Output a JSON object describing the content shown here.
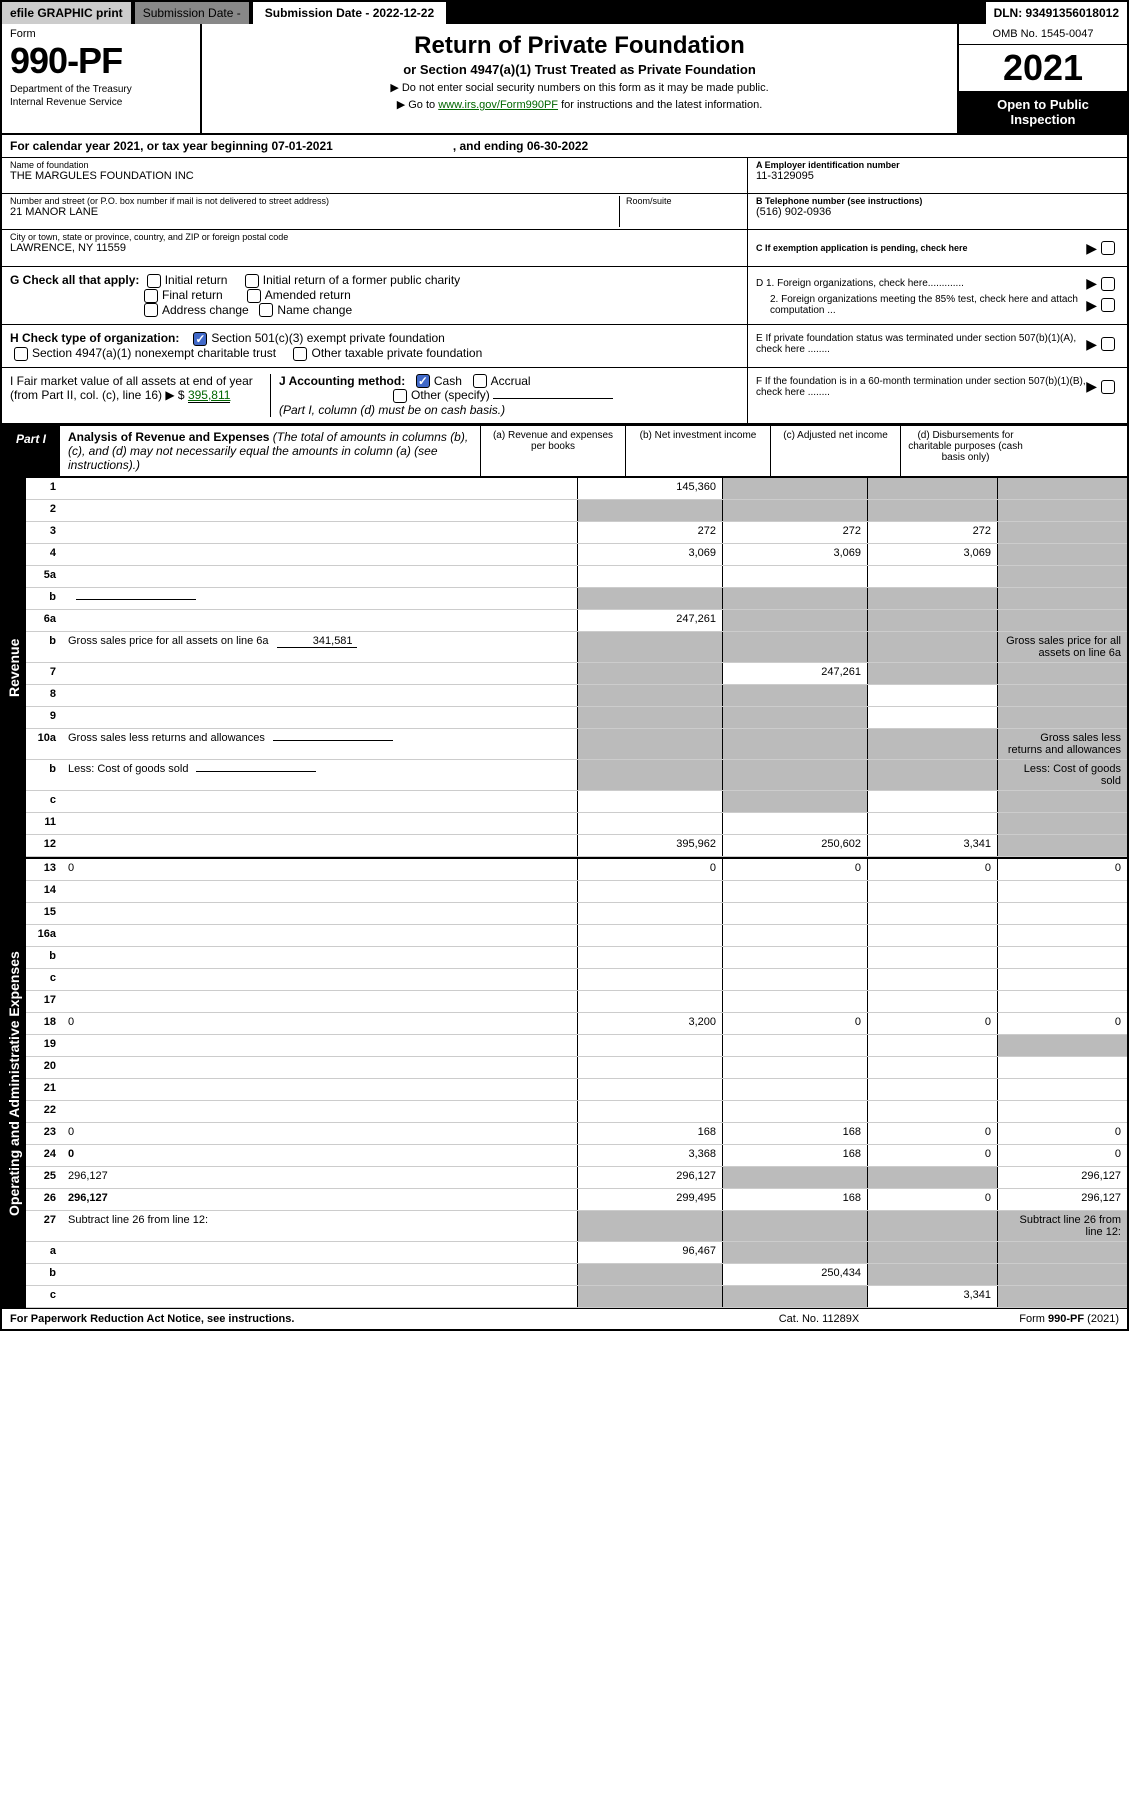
{
  "topbar": {
    "efile": "efile GRAPHIC print",
    "submission_label": "Submission Date - 2022-12-22",
    "dln": "DLN: 93491356018012"
  },
  "header": {
    "form_label": "Form",
    "form_number": "990-PF",
    "dept1": "Department of the Treasury",
    "dept2": "Internal Revenue Service",
    "title": "Return of Private Foundation",
    "subtitle": "or Section 4947(a)(1) Trust Treated as Private Foundation",
    "instr1": "▶ Do not enter social security numbers on this form as it may be made public.",
    "instr2_pre": "▶ Go to ",
    "instr2_link": "www.irs.gov/Form990PF",
    "instr2_post": " for instructions and the latest information.",
    "omb": "OMB No. 1545-0047",
    "year": "2021",
    "inspection1": "Open to Public",
    "inspection2": "Inspection"
  },
  "cal": {
    "text1": "For calendar year 2021, or tax year beginning 07-01-2021",
    "text2": ", and ending 06-30-2022"
  },
  "name_block": {
    "name_label": "Name of foundation",
    "name": "THE MARGULES FOUNDATION INC",
    "addr_label": "Number and street (or P.O. box number if mail is not delivered to street address)",
    "addr": "21 MANOR LANE",
    "room_label": "Room/suite",
    "city_label": "City or town, state or province, country, and ZIP or foreign postal code",
    "city": "LAWRENCE, NY  11559",
    "a_label": "A Employer identification number",
    "ein": "11-3129095",
    "b_label": "B Telephone number (see instructions)",
    "phone": "(516) 902-0936",
    "c_label": "C If exemption application is pending, check here"
  },
  "checks": {
    "g_label": "G Check all that apply:",
    "g_initial": "Initial return",
    "g_initial_former": "Initial return of a former public charity",
    "g_final": "Final return",
    "g_amended": "Amended return",
    "g_addr": "Address change",
    "g_name": "Name change",
    "h_label": "H Check type of organization:",
    "h_501c3": "Section 501(c)(3) exempt private foundation",
    "h_4947": "Section 4947(a)(1) nonexempt charitable trust",
    "h_other": "Other taxable private foundation",
    "i_label": "I Fair market value of all assets at end of year (from Part II, col. (c), line 16) ▶ $",
    "i_value": "395,811",
    "j_label": "J Accounting method:",
    "j_cash": "Cash",
    "j_accrual": "Accrual",
    "j_other": "Other (specify)",
    "j_note": "(Part I, column (d) must be on cash basis.)",
    "d1": "D 1. Foreign organizations, check here.............",
    "d2": "2. Foreign organizations meeting the 85% test, check here and attach computation ...",
    "e": "E  If private foundation status was terminated under section 507(b)(1)(A), check here ........",
    "f": "F  If the foundation is in a 60-month termination under section 507(b)(1)(B), check here ........"
  },
  "part1": {
    "label": "Part I",
    "title": "Analysis of Revenue and Expenses",
    "note": " (The total of amounts in columns (b), (c), and (d) may not necessarily equal the amounts in column (a) (see instructions).)",
    "colA": "(a)  Revenue and expenses per books",
    "colB": "(b)  Net investment income",
    "colC": "(c)  Adjusted net income",
    "colD": "(d)  Disbursements for charitable purposes (cash basis only)"
  },
  "revenue_label": "Revenue",
  "expenses_label": "Operating and Administrative Expenses",
  "rows": [
    {
      "n": "1",
      "d": "",
      "a": "145,360",
      "b": "",
      "c": "",
      "shadeB": true,
      "shadeC": true,
      "shadeD": true
    },
    {
      "n": "2",
      "d": "",
      "a": "",
      "b": "",
      "c": "",
      "shadeA": true,
      "shadeB": true,
      "shadeC": true,
      "shadeD": true
    },
    {
      "n": "3",
      "d": "",
      "a": "272",
      "b": "272",
      "c": "272",
      "shadeD": true
    },
    {
      "n": "4",
      "d": "",
      "a": "3,069",
      "b": "3,069",
      "c": "3,069",
      "shadeD": true
    },
    {
      "n": "5a",
      "d": "",
      "a": "",
      "b": "",
      "c": "",
      "shadeD": true
    },
    {
      "n": "b",
      "d": "",
      "a": "",
      "b": "",
      "c": "",
      "shadeA": true,
      "shadeB": true,
      "shadeC": true,
      "shadeD": true,
      "sub": true
    },
    {
      "n": "6a",
      "d": "",
      "a": "247,261",
      "b": "",
      "c": "",
      "shadeB": true,
      "shadeC": true,
      "shadeD": true
    },
    {
      "n": "b",
      "d": "Gross sales price for all assets on line 6a",
      "subval": "341,581",
      "shadeA": true,
      "shadeB": true,
      "shadeC": true,
      "shadeD": true
    },
    {
      "n": "7",
      "d": "",
      "a": "",
      "b": "247,261",
      "c": "",
      "shadeA": true,
      "shadeC": true,
      "shadeD": true
    },
    {
      "n": "8",
      "d": "",
      "a": "",
      "b": "",
      "c": "",
      "shadeA": true,
      "shadeB": true,
      "shadeD": true
    },
    {
      "n": "9",
      "d": "",
      "a": "",
      "b": "",
      "c": "",
      "shadeA": true,
      "shadeB": true,
      "shadeD": true
    },
    {
      "n": "10a",
      "d": "Gross sales less returns and allowances",
      "shadeA": true,
      "shadeB": true,
      "shadeC": true,
      "shadeD": true,
      "sub": true
    },
    {
      "n": "b",
      "d": "Less: Cost of goods sold",
      "shadeA": true,
      "shadeB": true,
      "shadeC": true,
      "shadeD": true,
      "sub": true
    },
    {
      "n": "c",
      "d": "",
      "a": "",
      "b": "",
      "c": "",
      "shadeB": true,
      "shadeD": true
    },
    {
      "n": "11",
      "d": "",
      "a": "",
      "b": "",
      "c": "",
      "shadeD": true
    },
    {
      "n": "12",
      "d": "",
      "a": "395,962",
      "b": "250,602",
      "c": "3,341",
      "bold": true,
      "shadeD": true
    }
  ],
  "exp_rows": [
    {
      "n": "13",
      "d": "0",
      "a": "0",
      "b": "0",
      "c": "0"
    },
    {
      "n": "14",
      "d": "",
      "a": "",
      "b": "",
      "c": ""
    },
    {
      "n": "15",
      "d": "",
      "a": "",
      "b": "",
      "c": ""
    },
    {
      "n": "16a",
      "d": "",
      "a": "",
      "b": "",
      "c": ""
    },
    {
      "n": "b",
      "d": "",
      "a": "",
      "b": "",
      "c": ""
    },
    {
      "n": "c",
      "d": "",
      "a": "",
      "b": "",
      "c": ""
    },
    {
      "n": "17",
      "d": "",
      "a": "",
      "b": "",
      "c": ""
    },
    {
      "n": "18",
      "d": "0",
      "a": "3,200",
      "b": "0",
      "c": "0"
    },
    {
      "n": "19",
      "d": "",
      "a": "",
      "b": "",
      "c": "",
      "shadeD": true
    },
    {
      "n": "20",
      "d": "",
      "a": "",
      "b": "",
      "c": ""
    },
    {
      "n": "21",
      "d": "",
      "a": "",
      "b": "",
      "c": ""
    },
    {
      "n": "22",
      "d": "",
      "a": "",
      "b": "",
      "c": ""
    },
    {
      "n": "23",
      "d": "0",
      "a": "168",
      "b": "168",
      "c": "0"
    },
    {
      "n": "24",
      "d": "0",
      "a": "3,368",
      "b": "168",
      "c": "0",
      "bold": true
    },
    {
      "n": "25",
      "d": "296,127",
      "a": "296,127",
      "b": "",
      "c": "",
      "shadeB": true,
      "shadeC": true
    },
    {
      "n": "26",
      "d": "296,127",
      "a": "299,495",
      "b": "168",
      "c": "0",
      "bold": true
    },
    {
      "n": "27",
      "d": "Subtract line 26 from line 12:",
      "shadeA": true,
      "shadeB": true,
      "shadeC": true,
      "shadeD": true
    },
    {
      "n": "a",
      "d": "",
      "a": "96,467",
      "b": "",
      "c": "",
      "bold": true,
      "shadeB": true,
      "shadeC": true,
      "shadeD": true
    },
    {
      "n": "b",
      "d": "",
      "a": "",
      "b": "250,434",
      "c": "",
      "bold": true,
      "shadeA": true,
      "shadeC": true,
      "shadeD": true
    },
    {
      "n": "c",
      "d": "",
      "a": "",
      "b": "",
      "c": "3,341",
      "bold": true,
      "shadeA": true,
      "shadeB": true,
      "shadeD": true
    }
  ],
  "footer": {
    "left": "For Paperwork Reduction Act Notice, see instructions.",
    "mid": "Cat. No. 11289X",
    "right": "Form 990-PF (2021)"
  }
}
